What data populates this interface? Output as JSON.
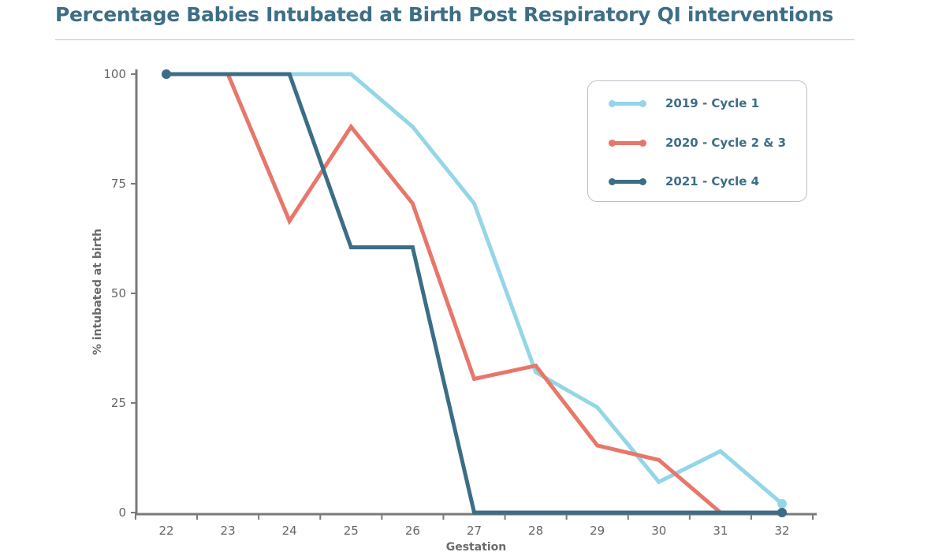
{
  "title": "Percentage Babies Intubated at Birth Post Respiratory QI interventions",
  "chart_data": {
    "type": "line",
    "title": "Percentage Babies Intubated at Birth Post Respiratory QI interventions",
    "xlabel": "Gestation",
    "ylabel": "% intubated at birth",
    "x": [
      22,
      23,
      24,
      25,
      26,
      27,
      28,
      29,
      30,
      31,
      32
    ],
    "x_tick_labels": [
      "22",
      "23",
      "24",
      "25",
      "26",
      "27",
      "28",
      "29",
      "30",
      "31",
      "32"
    ],
    "y_ticks": [
      0,
      25,
      50,
      75,
      100
    ],
    "y_tick_labels": [
      "0",
      "25",
      "50",
      "75",
      "100"
    ],
    "ylim": [
      0,
      100
    ],
    "grid": false,
    "legend_position": "top-right",
    "series": [
      {
        "name": "2019 - Cycle 1",
        "color": "#94d6e8",
        "x": [
          22,
          23,
          24,
          25,
          26,
          27,
          28,
          29,
          30,
          31,
          32
        ],
        "values": [
          100,
          100,
          100,
          100,
          88,
          70.5,
          32,
          24,
          7,
          14,
          2
        ]
      },
      {
        "name": "2020 - Cycle 2 & 3",
        "color": "#e7776a",
        "x": [
          23,
          24,
          25,
          26,
          27,
          28,
          29,
          30,
          31
        ],
        "values": [
          100,
          66.5,
          88,
          70.5,
          30.5,
          33.5,
          15.3,
          12,
          0
        ]
      },
      {
        "name": "2021 - Cycle 4",
        "color": "#3b6e86",
        "x": [
          22,
          23,
          24,
          25,
          26,
          27,
          28,
          29,
          30,
          31,
          32
        ],
        "values": [
          100,
          100,
          100,
          60.5,
          60.5,
          0,
          0,
          0,
          0,
          0,
          0
        ]
      }
    ]
  }
}
